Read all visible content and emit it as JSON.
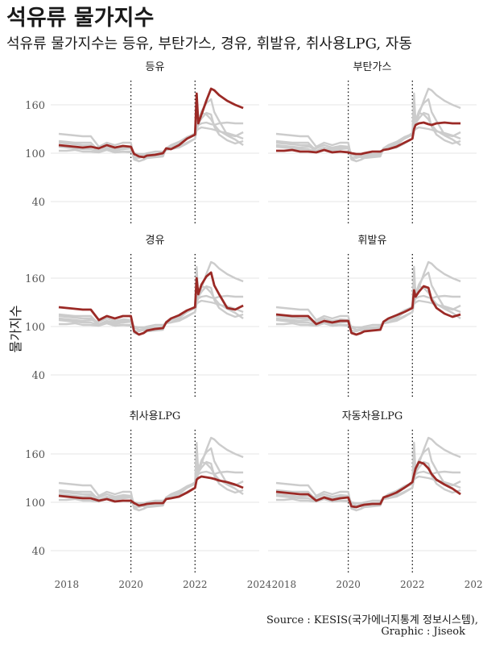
{
  "title": "석유류 물가지수",
  "subtitle": "석유류 물가지수는 등유, 부탄가스, 경유, 휘발유, 취사용LPG, 자동",
  "ylabel": "물가지수",
  "source": "Source : KESIS(국가에너지통계 정보시스템),",
  "graphic": "Graphic : Jiseok",
  "colors": {
    "highlight": "#9b2a26",
    "background_series": "#cccccc",
    "grid": "#e6e6e6",
    "vline": "#111111"
  },
  "chart_data": {
    "type": "line",
    "layout": "small-multiples",
    "x_ticks": [
      "2018",
      "2020",
      "2022",
      "2024"
    ],
    "xlim": [
      2017.5,
      2024
    ],
    "y_ticks": [
      40,
      100,
      160
    ],
    "ylim": [
      10,
      190
    ],
    "vlines": [
      2020,
      2022
    ],
    "grid": true,
    "x_dates": [
      2017.75,
      2018.0,
      2018.25,
      2018.5,
      2018.75,
      2019.0,
      2019.25,
      2019.5,
      2019.75,
      2020.0,
      2020.1,
      2020.25,
      2020.4,
      2020.5,
      2020.75,
      2021.0,
      2021.1,
      2021.25,
      2021.5,
      2021.75,
      2022.0,
      2022.05,
      2022.1,
      2022.2,
      2022.35,
      2022.5,
      2022.6,
      2022.75,
      2023.0,
      2023.25,
      2023.5
    ],
    "series": [
      {
        "name": "등유",
        "values": [
          110,
          109,
          108,
          107,
          108,
          106,
          110,
          107,
          109,
          108,
          99,
          96,
          95,
          97,
          98,
          100,
          106,
          105,
          110,
          118,
          123,
          174,
          137,
          148,
          165,
          180,
          178,
          172,
          165,
          160,
          156
        ]
      },
      {
        "name": "부탄가스",
        "values": [
          103,
          103,
          104,
          102,
          102,
          101,
          104,
          101,
          102,
          101,
          100,
          99,
          99,
          100,
          102,
          102,
          104,
          105,
          108,
          113,
          118,
          130,
          135,
          137,
          138,
          136,
          135,
          137,
          138,
          137,
          137
        ]
      },
      {
        "name": "경유",
        "values": [
          124,
          123,
          122,
          121,
          121,
          108,
          113,
          110,
          113,
          113,
          94,
          90,
          92,
          95,
          97,
          98,
          105,
          110,
          114,
          120,
          124,
          160,
          140,
          152,
          162,
          167,
          151,
          140,
          123,
          121,
          126
        ]
      },
      {
        "name": "휘발유",
        "values": [
          115,
          114,
          113,
          113,
          113,
          103,
          107,
          105,
          107,
          107,
          92,
          90,
          92,
          94,
          95,
          96,
          106,
          110,
          114,
          118,
          123,
          145,
          137,
          143,
          150,
          148,
          133,
          123,
          116,
          112,
          115
        ]
      },
      {
        "name": "취사용LPG",
        "values": [
          108,
          107,
          106,
          105,
          105,
          102,
          104,
          101,
          102,
          102,
          99,
          96,
          97,
          98,
          99,
          99,
          104,
          105,
          107,
          112,
          118,
          128,
          130,
          132,
          131,
          130,
          129,
          127,
          125,
          122,
          118
        ]
      },
      {
        "name": "자동차용LPG",
        "values": [
          113,
          112,
          111,
          110,
          110,
          102,
          106,
          103,
          105,
          106,
          95,
          94,
          96,
          97,
          98,
          98,
          106,
          108,
          112,
          118,
          125,
          134,
          142,
          150,
          148,
          142,
          135,
          128,
          122,
          117,
          110
        ]
      }
    ],
    "panels": [
      "등유",
      "부탄가스",
      "경유",
      "휘발유",
      "취사용LPG",
      "자동차용LPG"
    ]
  }
}
